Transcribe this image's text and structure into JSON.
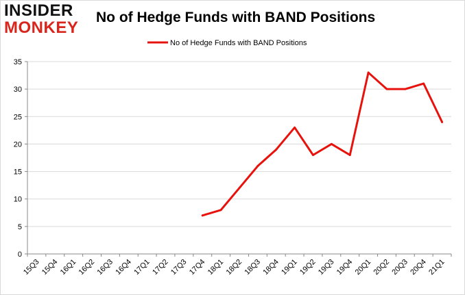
{
  "logo": {
    "line1": "INSIDER",
    "line2": "MONKEY",
    "colors": {
      "line1": "#111111",
      "line2": "#d9261c"
    }
  },
  "chart_data": {
    "type": "line",
    "title": "No of Hedge Funds with BAND Positions",
    "xlabel": "",
    "ylabel": "",
    "categories": [
      "15Q3",
      "15Q4",
      "16Q1",
      "16Q2",
      "16Q3",
      "16Q4",
      "17Q1",
      "17Q2",
      "17Q3",
      "17Q4",
      "18Q1",
      "18Q2",
      "18Q3",
      "18Q4",
      "19Q1",
      "19Q2",
      "19Q3",
      "19Q4",
      "20Q1",
      "20Q2",
      "20Q3",
      "20Q4",
      "21Q1"
    ],
    "series": [
      {
        "name": "No of Hedge Funds with BAND Positions",
        "color": "#e8120c",
        "values": [
          null,
          null,
          null,
          null,
          null,
          null,
          null,
          null,
          null,
          7,
          8,
          12,
          16,
          19,
          23,
          18,
          20,
          18,
          33,
          30,
          30,
          31,
          24
        ]
      }
    ],
    "ylim": [
      0,
      35
    ],
    "yticks": [
      0,
      5,
      10,
      15,
      20,
      25,
      30,
      35
    ],
    "grid": true,
    "legend_position": "top"
  }
}
